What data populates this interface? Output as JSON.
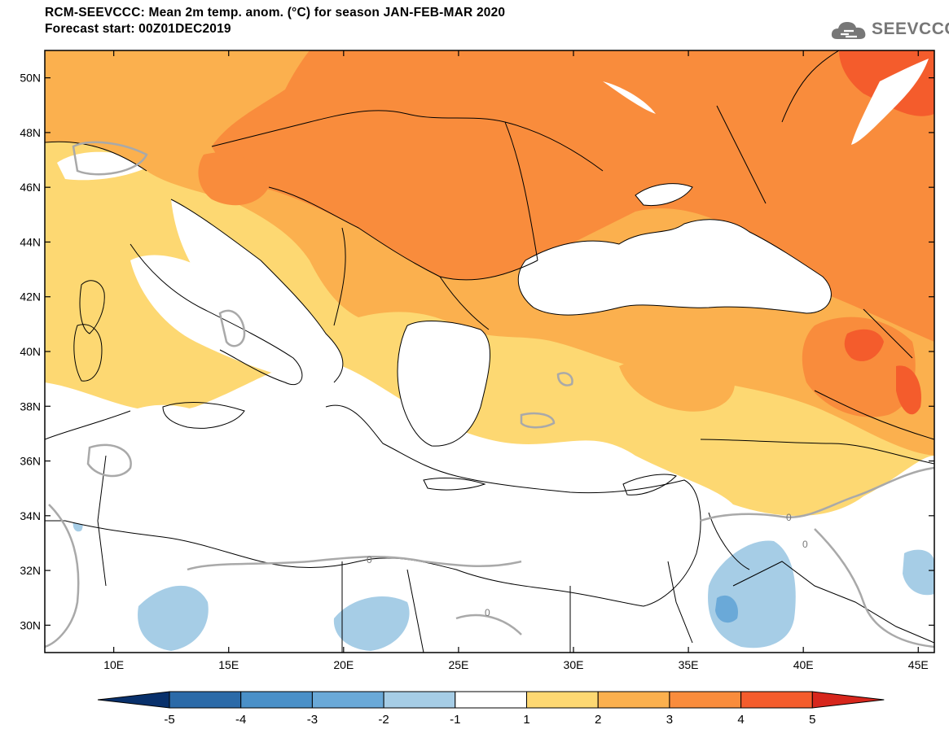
{
  "header": {
    "title_line1": "RCM-SEEVCCC: Mean 2m temp. anom. (°C) for season JAN-FEB-MAR 2020",
    "title_line2": "Forecast start: 00Z01DEC2019"
  },
  "logo": {
    "text": "SEEVCCC",
    "icon": "cloud-logo-icon"
  },
  "map": {
    "lon_range": [
      7,
      45.7
    ],
    "lat_range": [
      29,
      51
    ],
    "lat_ticks": [
      {
        "value": 50,
        "label": "50N"
      },
      {
        "value": 48,
        "label": "48N"
      },
      {
        "value": 46,
        "label": "46N"
      },
      {
        "value": 44,
        "label": "44N"
      },
      {
        "value": 42,
        "label": "42N"
      },
      {
        "value": 40,
        "label": "40N"
      },
      {
        "value": 38,
        "label": "38N"
      },
      {
        "value": 36,
        "label": "36N"
      },
      {
        "value": 34,
        "label": "34N"
      },
      {
        "value": 32,
        "label": "32N"
      },
      {
        "value": 30,
        "label": "30N"
      }
    ],
    "lon_ticks": [
      {
        "value": 10,
        "label": "10E"
      },
      {
        "value": 15,
        "label": "15E"
      },
      {
        "value": 20,
        "label": "20E"
      },
      {
        "value": 25,
        "label": "25E"
      },
      {
        "value": 30,
        "label": "30E"
      },
      {
        "value": 35,
        "label": "35E"
      },
      {
        "value": 40,
        "label": "40E"
      },
      {
        "value": 45,
        "label": "45E"
      }
    ],
    "contour_labels": [
      "0",
      "0",
      "0",
      "0"
    ]
  },
  "colorbar": {
    "levels": [
      "-5",
      "-4",
      "-3",
      "-2",
      "-1",
      "1",
      "2",
      "3",
      "4",
      "5"
    ],
    "colors": [
      "#08306b",
      "#2b6aa8",
      "#4a90c8",
      "#6aa9d8",
      "#a6cde6",
      "#ffffff",
      "#fdd872",
      "#fbb04e",
      "#f98c3c",
      "#f45c2c",
      "#d7261c"
    ]
  }
}
